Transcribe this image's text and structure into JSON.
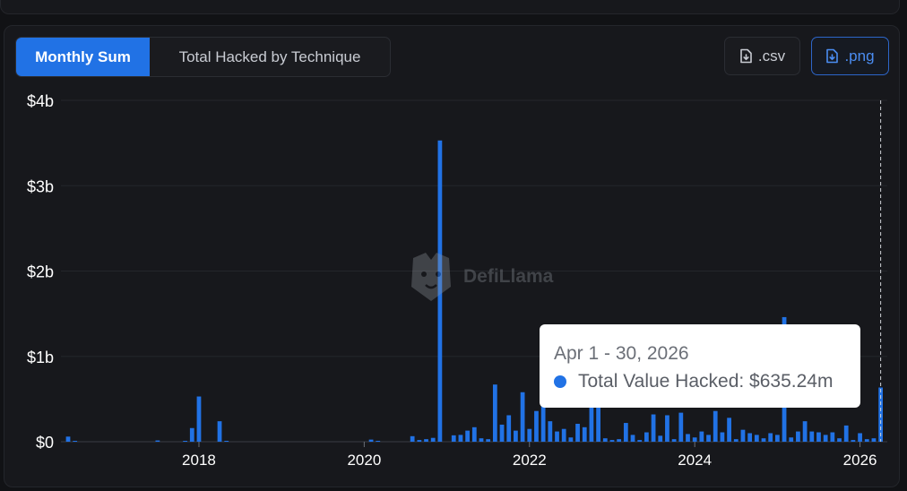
{
  "tabs": [
    {
      "label": "Monthly Sum",
      "active": true
    },
    {
      "label": "Total Hacked by Technique",
      "active": false
    }
  ],
  "downloads": {
    "csv_label": ".csv",
    "png_label": ".png"
  },
  "watermark": "DefiLlama",
  "tooltip": {
    "date": "Apr 1 - 30, 2026",
    "label": "Total Value Hacked: $635.24m"
  },
  "colors": {
    "bar": "#2172e5",
    "background": "#17181c",
    "grid": "#24262b"
  },
  "chart_data": {
    "type": "bar",
    "title": "",
    "xlabel": "",
    "ylabel": "",
    "ylim": [
      0,
      4000000000
    ],
    "yticks": [
      {
        "value": 0,
        "label": "$0"
      },
      {
        "value": 1000000000,
        "label": "$1b"
      },
      {
        "value": 2000000000,
        "label": "$2b"
      },
      {
        "value": 3000000000,
        "label": "$3b"
      },
      {
        "value": 4000000000,
        "label": "$4b"
      }
    ],
    "xrange": [
      2016.33,
      2026.33
    ],
    "xticks": [
      {
        "value": 2018,
        "label": "2018"
      },
      {
        "value": 2020,
        "label": "2020"
      },
      {
        "value": 2022,
        "label": "2022"
      },
      {
        "value": 2024,
        "label": "2024"
      },
      {
        "value": 2026,
        "label": "2026"
      }
    ],
    "series": [
      {
        "unit": "USD millions",
        "points": [
          [
            "2016-06",
            60
          ],
          [
            "2016-07",
            5
          ],
          [
            "2017-07",
            15
          ],
          [
            "2017-11",
            10
          ],
          [
            "2017-12",
            160
          ],
          [
            "2018-01",
            530
          ],
          [
            "2018-04",
            240
          ],
          [
            "2018-05",
            5
          ],
          [
            "2020-02",
            25
          ],
          [
            "2020-03",
            5
          ],
          [
            "2020-08",
            65
          ],
          [
            "2020-09",
            20
          ],
          [
            "2020-10",
            30
          ],
          [
            "2020-11",
            45
          ],
          [
            "2020-12",
            3530
          ],
          [
            "2021-02",
            75
          ],
          [
            "2021-03",
            80
          ],
          [
            "2021-04",
            130
          ],
          [
            "2021-05",
            170
          ],
          [
            "2021-06",
            40
          ],
          [
            "2021-07",
            30
          ],
          [
            "2021-08",
            670
          ],
          [
            "2021-09",
            200
          ],
          [
            "2021-10",
            310
          ],
          [
            "2021-11",
            130
          ],
          [
            "2021-12",
            580
          ],
          [
            "2022-01",
            150
          ],
          [
            "2022-02",
            360
          ],
          [
            "2022-03",
            620
          ],
          [
            "2022-04",
            240
          ],
          [
            "2022-05",
            120
          ],
          [
            "2022-06",
            150
          ],
          [
            "2022-07",
            50
          ],
          [
            "2022-08",
            210
          ],
          [
            "2022-09",
            170
          ],
          [
            "2022-10",
            640
          ],
          [
            "2022-11",
            470
          ],
          [
            "2022-12",
            40
          ],
          [
            "2023-01",
            20
          ],
          [
            "2023-02",
            30
          ],
          [
            "2023-03",
            220
          ],
          [
            "2023-04",
            80
          ],
          [
            "2023-05",
            20
          ],
          [
            "2023-06",
            110
          ],
          [
            "2023-07",
            320
          ],
          [
            "2023-08",
            70
          ],
          [
            "2023-09",
            310
          ],
          [
            "2023-10",
            30
          ],
          [
            "2023-11",
            340
          ],
          [
            "2023-12",
            90
          ],
          [
            "2024-01",
            50
          ],
          [
            "2024-02",
            120
          ],
          [
            "2024-03",
            80
          ],
          [
            "2024-04",
            360
          ],
          [
            "2024-05",
            110
          ],
          [
            "2024-06",
            280
          ],
          [
            "2024-07",
            30
          ],
          [
            "2024-08",
            140
          ],
          [
            "2024-09",
            100
          ],
          [
            "2024-10",
            80
          ],
          [
            "2024-11",
            40
          ],
          [
            "2024-12",
            100
          ],
          [
            "2025-01",
            80
          ],
          [
            "2025-02",
            1460
          ],
          [
            "2025-03",
            50
          ],
          [
            "2025-04",
            120
          ],
          [
            "2025-05",
            240
          ],
          [
            "2025-06",
            120
          ],
          [
            "2025-07",
            110
          ],
          [
            "2025-08",
            80
          ],
          [
            "2025-09",
            110
          ],
          [
            "2025-10",
            40
          ],
          [
            "2025-11",
            190
          ],
          [
            "2025-12",
            20
          ],
          [
            "2026-01",
            100
          ],
          [
            "2026-02",
            30
          ],
          [
            "2026-03",
            40
          ],
          [
            "2026-04",
            635.24
          ]
        ]
      }
    ]
  }
}
